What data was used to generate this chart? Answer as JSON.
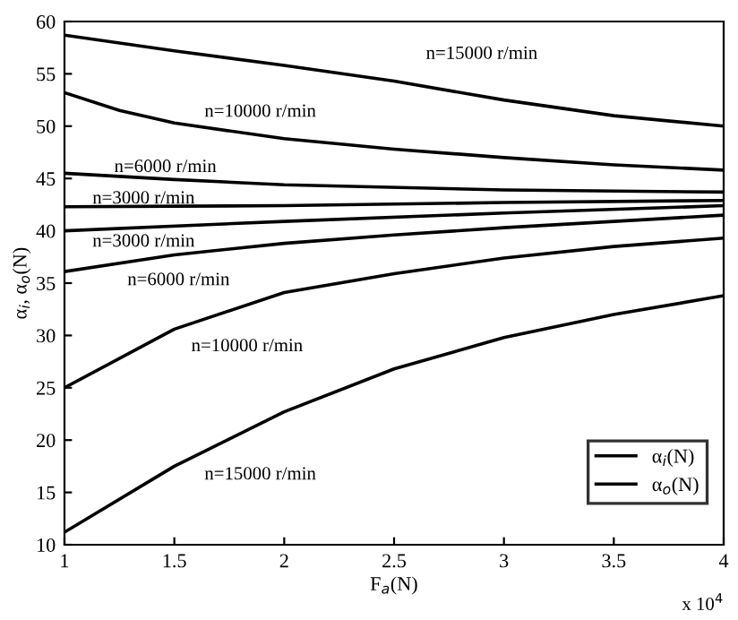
{
  "chart_data": {
    "type": "line",
    "xlabel": "F$_{a}$(N)",
    "ylabel": "α$_{i}$, α$_{o}$(N)",
    "xlim": [
      1,
      4
    ],
    "ylim": [
      10,
      60
    ],
    "xticks": [
      1,
      1.5,
      2,
      2.5,
      3,
      3.5,
      4
    ],
    "yticks": [
      10,
      15,
      20,
      25,
      30,
      35,
      40,
      45,
      50,
      55,
      60
    ],
    "grid": false,
    "legend": "bottom right",
    "marker": "none",
    "line_style": "solid",
    "series": [
      {
        "name": "α$_{i}$(N)",
        "color": "#000000",
        "x": [
          1,
          1.5,
          2,
          2.5,
          3,
          3.5,
          4
        ],
        "values": [
          58.7,
          57.2,
          55.8,
          54.3,
          52.5,
          51.0,
          50.0
        ]
      },
      {
        "color": "#000000",
        "x": [
          1,
          1.25,
          1.5,
          2,
          2.5,
          3,
          3.5,
          4
        ],
        "values": [
          53.2,
          51.5,
          50.3,
          48.8,
          47.8,
          47.0,
          46.3,
          45.8
        ]
      },
      {
        "color": "#000000",
        "x": [
          1,
          1.5,
          2,
          3,
          4
        ],
        "values": [
          45.5,
          44.9,
          44.4,
          43.9,
          43.7
        ]
      },
      {
        "color": "#000000",
        "x": [
          1,
          2,
          3,
          4
        ],
        "values": [
          42.3,
          42.4,
          42.7,
          42.9
        ]
      },
      {
        "name": "α$_{o}$(N)",
        "color": "#000000",
        "x": [
          1,
          2,
          3,
          4
        ],
        "values": [
          40.0,
          40.9,
          41.7,
          42.4
        ]
      },
      {
        "color": "#000000",
        "x": [
          1,
          1.5,
          2,
          2.5,
          3,
          3.5,
          4
        ],
        "values": [
          36.1,
          37.7,
          38.8,
          39.6,
          40.3,
          40.9,
          41.5
        ]
      },
      {
        "color": "#000000",
        "x": [
          1,
          1.5,
          2,
          2.5,
          3,
          3.5,
          4
        ],
        "values": [
          25.0,
          30.6,
          34.1,
          35.9,
          37.4,
          38.5,
          39.3
        ]
      },
      {
        "color": "#000000",
        "x": [
          1,
          1.5,
          2,
          2.5,
          3,
          3.5,
          4
        ],
        "values": [
          11.2,
          17.5,
          22.7,
          26.8,
          29.8,
          32.0,
          33.8
        ]
      }
    ],
    "annotations": [
      "n=15000 r/min",
      "n=10000 r/min",
      "n=6000 r/min",
      "n=3000 r/min",
      "n=3000 r/min",
      "n=6000 r/min",
      "n=10000 r/min",
      "n=15000 r/min",
      "x 10$^{4}$"
    ]
  }
}
